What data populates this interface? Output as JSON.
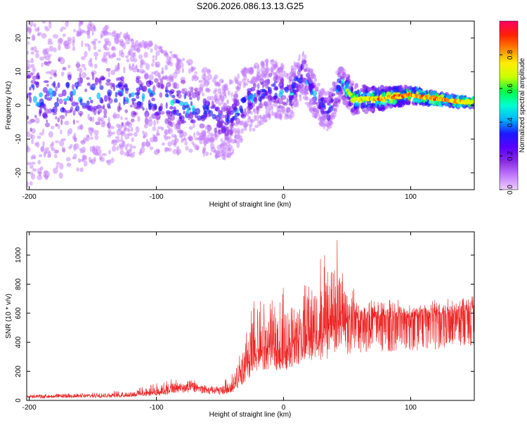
{
  "title": "S206.2026.086.13.13.G25",
  "colors": {
    "snr_line": "#ee2222",
    "axis": "#000000",
    "colorbar_stops": [
      "#eecfff",
      "#c27cff",
      "#8a2be2",
      "#5a00ff",
      "#1a1aff",
      "#00b5ff",
      "#00ffd0",
      "#00ff44",
      "#c8ff00",
      "#ffee00",
      "#ff8800",
      "#ff2200",
      "#ff0066"
    ]
  },
  "chart_data": [
    {
      "type": "heatmap",
      "title": "S206.2026.086.13.13.G25",
      "xlabel": "Height of straight line (km)",
      "ylabel": "Frequency (Hz)",
      "xlim": [
        -202,
        150
      ],
      "ylim": [
        -25,
        25
      ],
      "x_ticks": [
        {
          "value": -200,
          "label": "-200"
        },
        {
          "value": -100,
          "label": "-100"
        },
        {
          "value": 0,
          "label": "0"
        },
        {
          "value": 100,
          "label": "100"
        }
      ],
      "y_ticks": [
        {
          "value": 20,
          "label": "20"
        },
        {
          "value": 10,
          "label": "10"
        },
        {
          "value": 0,
          "label": "0"
        },
        {
          "value": -10,
          "label": "-10"
        },
        {
          "value": -20,
          "label": "-20"
        }
      ],
      "colorbar": {
        "label": "Normalized spectral amplitude",
        "range": [
          0,
          1
        ],
        "ticks": [
          {
            "value": 0.0,
            "label": "0.0"
          },
          {
            "value": 0.2,
            "label": "0.2"
          },
          {
            "value": 0.4,
            "label": "0.4"
          },
          {
            "value": 0.6,
            "label": "0.6"
          },
          {
            "value": 0.8,
            "label": "0.8"
          }
        ]
      },
      "ridge": [
        {
          "x": -120,
          "freq": 3,
          "amp": 0.45
        },
        {
          "x": -100,
          "freq": 2,
          "amp": 0.5
        },
        {
          "x": -80,
          "freq": 0,
          "amp": 0.5
        },
        {
          "x": -60,
          "freq": -2,
          "amp": 0.45
        },
        {
          "x": -45,
          "freq": -5,
          "amp": 0.4
        },
        {
          "x": -30,
          "freq": 1,
          "amp": 0.45
        },
        {
          "x": -10,
          "freq": 5,
          "amp": 0.4
        },
        {
          "x": 5,
          "freq": 3,
          "amp": 0.5
        },
        {
          "x": 15,
          "freq": 10,
          "amp": 0.45
        },
        {
          "x": 25,
          "freq": 2,
          "amp": 0.45
        },
        {
          "x": 35,
          "freq": -2,
          "amp": 0.45
        },
        {
          "x": 45,
          "freq": 7,
          "amp": 0.5
        },
        {
          "x": 55,
          "freq": 2,
          "amp": 0.8
        },
        {
          "x": 75,
          "freq": 2,
          "amp": 0.9
        },
        {
          "x": 100,
          "freq": 3,
          "amp": 0.95
        },
        {
          "x": 120,
          "freq": 2,
          "amp": 0.9
        },
        {
          "x": 140,
          "freq": 1,
          "amp": 0.85
        }
      ]
    },
    {
      "type": "line",
      "xlabel": "Height of straight line (km)",
      "ylabel": "SNR (10 * v/v)",
      "xlim": [
        -202,
        150
      ],
      "ylim": [
        0,
        1160
      ],
      "x_ticks": [
        {
          "value": -200,
          "label": "-200"
        },
        {
          "value": -100,
          "label": "-100"
        },
        {
          "value": 0,
          "label": "0"
        },
        {
          "value": 100,
          "label": "100"
        }
      ],
      "y_ticks": [
        {
          "value": 0,
          "label": "0"
        },
        {
          "value": 200,
          "label": "200"
        },
        {
          "value": 400,
          "label": "400"
        },
        {
          "value": 600,
          "label": "600"
        },
        {
          "value": 800,
          "label": "800"
        },
        {
          "value": 1000,
          "label": "1000"
        }
      ],
      "series": [
        {
          "name": "SNR",
          "x": [
            -202,
            -180,
            -160,
            -140,
            -120,
            -100,
            -90,
            -80,
            -70,
            -60,
            -50,
            -40,
            -30,
            -25,
            -20,
            -15,
            -10,
            -5,
            0,
            5,
            10,
            15,
            20,
            25,
            30,
            35,
            40,
            45,
            50,
            55,
            60,
            70,
            80,
            90,
            100,
            110,
            120,
            130,
            140,
            150
          ],
          "values": [
            25,
            28,
            30,
            32,
            38,
            55,
            70,
            85,
            95,
            70,
            60,
            90,
            200,
            280,
            320,
            340,
            360,
            340,
            330,
            360,
            400,
            420,
            430,
            440,
            450,
            480,
            520,
            500,
            520,
            540,
            550,
            560,
            555,
            560,
            570,
            575,
            580,
            590,
            600,
            620
          ],
          "peak_values": [
            40,
            45,
            50,
            60,
            70,
            120,
            150,
            140,
            140,
            100,
            110,
            200,
            480,
            650,
            800,
            680,
            700,
            650,
            800,
            700,
            800,
            750,
            900,
            950,
            1050,
            1000,
            1160,
            1050,
            900,
            820,
            700,
            700,
            690,
            700,
            690,
            680,
            700,
            710,
            720,
            740
          ]
        }
      ]
    }
  ]
}
